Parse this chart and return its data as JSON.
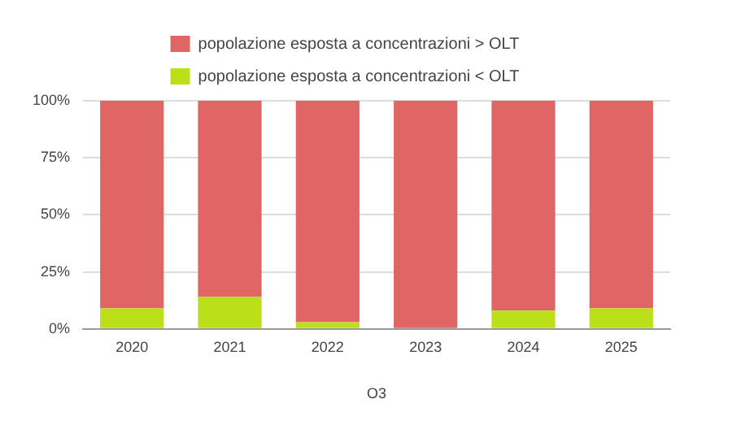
{
  "chart_data": {
    "type": "bar",
    "stacked": true,
    "xlabel": "O3",
    "categories": [
      "2020",
      "2021",
      "2022",
      "2023",
      "2024",
      "2025"
    ],
    "series": [
      {
        "name": "popolazione esposta a concentrazioni < OLT",
        "color": "#bbe01a",
        "values": [
          9,
          14,
          3,
          0,
          8,
          9
        ]
      },
      {
        "name": "popolazione esposta a concentrazioni > OLT",
        "color": "#e06666",
        "values": [
          91,
          86,
          97,
          100,
          92,
          91
        ]
      }
    ],
    "ylim": [
      0,
      100
    ],
    "yticks": [
      {
        "value": 0,
        "label": "0%"
      },
      {
        "value": 25,
        "label": "25%"
      },
      {
        "value": 50,
        "label": "50%"
      },
      {
        "value": 75,
        "label": "75%"
      },
      {
        "value": 100,
        "label": "100%"
      }
    ],
    "grid": "y",
    "legend": "top"
  }
}
